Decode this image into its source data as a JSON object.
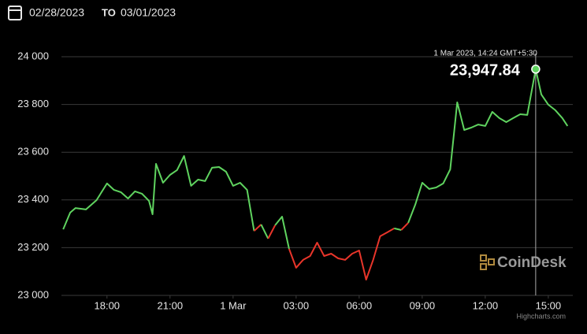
{
  "header": {
    "from": "02/28/2023",
    "to_label": "TO",
    "to": "03/01/2023"
  },
  "chart_data": {
    "type": "line",
    "x": [
      "2023-02-28 15:55",
      "2023-02-28 16:15",
      "2023-02-28 16:30",
      "2023-02-28 17:00",
      "2023-02-28 17:30",
      "2023-02-28 18:00",
      "2023-02-28 18:20",
      "2023-02-28 18:40",
      "2023-02-28 19:00",
      "2023-02-28 19:20",
      "2023-02-28 19:40",
      "2023-02-28 20:00",
      "2023-02-28 20:10",
      "2023-02-28 20:20",
      "2023-02-28 20:40",
      "2023-02-28 21:00",
      "2023-02-28 21:20",
      "2023-02-28 21:40",
      "2023-02-28 22:00",
      "2023-02-28 22:20",
      "2023-02-28 22:40",
      "2023-02-28 23:00",
      "2023-02-28 23:20",
      "2023-02-28 23:40",
      "2023-03-01 00:00",
      "2023-03-01 00:20",
      "2023-03-01 00:40",
      "2023-03-01 01:00",
      "2023-03-01 01:20",
      "2023-03-01 01:40",
      "2023-03-01 02:00",
      "2023-03-01 02:20",
      "2023-03-01 02:40",
      "2023-03-01 03:00",
      "2023-03-01 03:20",
      "2023-03-01 03:40",
      "2023-03-01 04:00",
      "2023-03-01 04:20",
      "2023-03-01 04:40",
      "2023-03-01 05:00",
      "2023-03-01 05:20",
      "2023-03-01 05:40",
      "2023-03-01 06:00",
      "2023-03-01 06:20",
      "2023-03-01 06:40",
      "2023-03-01 07:00",
      "2023-03-01 07:20",
      "2023-03-01 07:40",
      "2023-03-01 08:00",
      "2023-03-01 08:20",
      "2023-03-01 08:40",
      "2023-03-01 09:00",
      "2023-03-01 09:20",
      "2023-03-01 09:40",
      "2023-03-01 10:00",
      "2023-03-01 10:20",
      "2023-03-01 10:40",
      "2023-03-01 11:00",
      "2023-03-01 11:20",
      "2023-03-01 11:40",
      "2023-03-01 12:00",
      "2023-03-01 12:20",
      "2023-03-01 12:40",
      "2023-03-01 13:00",
      "2023-03-01 13:20",
      "2023-03-01 13:40",
      "2023-03-01 14:00",
      "2023-03-01 14:24",
      "2023-03-01 14:40",
      "2023-03-01 15:00",
      "2023-03-01 15:20",
      "2023-03-01 15:40",
      "2023-03-01 15:55"
    ],
    "values": [
      23277,
      23347,
      23366,
      23360,
      23399,
      23469,
      23442,
      23432,
      23406,
      23436,
      23426,
      23396,
      23340,
      23551,
      23472,
      23505,
      23525,
      23584,
      23459,
      23485,
      23479,
      23535,
      23538,
      23518,
      23459,
      23472,
      23442,
      23270,
      23297,
      23238,
      23294,
      23330,
      23195,
      23116,
      23149,
      23165,
      23221,
      23165,
      23175,
      23155,
      23149,
      23175,
      23188,
      23066,
      23149,
      23248,
      23264,
      23281,
      23274,
      23304,
      23380,
      23472,
      23446,
      23452,
      23469,
      23528,
      23809,
      23693,
      23703,
      23716,
      23710,
      23769,
      23743,
      23726,
      23743,
      23759,
      23756,
      23947.84,
      23842,
      23799,
      23776,
      23743,
      23710
    ],
    "up_color": "#5fd35f",
    "down_color": "#e8352a",
    "xlim": [
      "2023-02-28 15:50",
      "2023-03-01 16:10"
    ],
    "xticks": [
      {
        "value": "2023-02-28 18:00",
        "label": "18:00"
      },
      {
        "value": "2023-02-28 21:00",
        "label": "21:00"
      },
      {
        "value": "2023-03-01 00:00",
        "label": "1 Mar"
      },
      {
        "value": "2023-03-01 03:00",
        "label": "03:00"
      },
      {
        "value": "2023-03-01 06:00",
        "label": "06:00"
      },
      {
        "value": "2023-03-01 09:00",
        "label": "09:00"
      },
      {
        "value": "2023-03-01 12:00",
        "label": "12:00"
      },
      {
        "value": "2023-03-01 15:00",
        "label": "15:00"
      }
    ],
    "ylim": [
      23000,
      24000
    ],
    "yticks": [
      {
        "value": 23000,
        "label": "23 000"
      },
      {
        "value": 23200,
        "label": "23 200"
      },
      {
        "value": 23400,
        "label": "23 400"
      },
      {
        "value": 23600,
        "label": "23 600"
      },
      {
        "value": 23800,
        "label": "23 800"
      },
      {
        "value": 24000,
        "label": "24 000"
      }
    ],
    "grid": true,
    "tooltip": {
      "x": "2023-03-01 14:24",
      "value": 23947.84,
      "date_label": "1 Mar 2023, 14:24 GMT+5:30",
      "value_label": "23,947.84"
    },
    "watermark": "CoinDesk",
    "credits": "Highcharts.com"
  }
}
